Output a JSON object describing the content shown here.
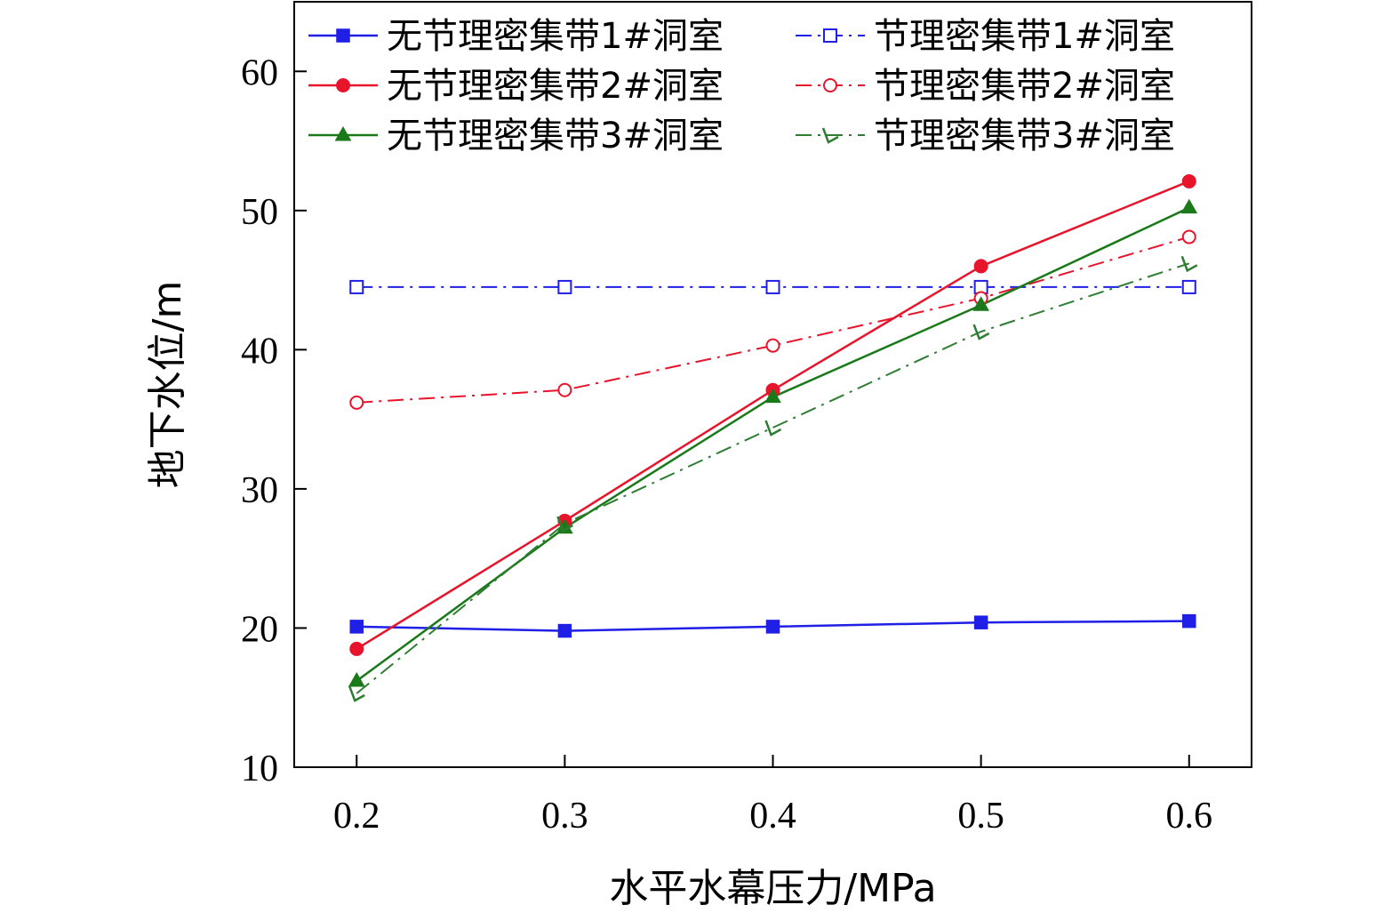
{
  "chart_data": {
    "type": "line",
    "xlabel": "水平水幕压力/MPa",
    "ylabel": "地下水位/m",
    "x": [
      0.2,
      0.3,
      0.4,
      0.5,
      0.6
    ],
    "x_tick_labels": [
      "0.2",
      "0.3",
      "0.4",
      "0.5",
      "0.6"
    ],
    "xlim": [
      0.17,
      0.63
    ],
    "ylim": [
      10,
      65
    ],
    "y_ticks": [
      10,
      20,
      30,
      40,
      50,
      60
    ],
    "y_tick_labels": [
      "10",
      "20",
      "30",
      "40",
      "50",
      "60"
    ],
    "grid": false,
    "legend_position": "top",
    "series": [
      {
        "name": "无节理密集带1#洞室",
        "values": [
          20.1,
          19.8,
          20.1,
          20.4,
          20.5
        ],
        "color": "#1f1fe6",
        "marker": "square-filled",
        "line": "solid"
      },
      {
        "name": "节理密集带1#洞室",
        "values": [
          44.5,
          44.5,
          44.5,
          44.5,
          44.5
        ],
        "color": "#1f1fe6",
        "marker": "square-open",
        "line": "dashdot"
      },
      {
        "name": "无节理密集带2#洞室",
        "values": [
          18.5,
          27.7,
          37.1,
          46.0,
          52.1
        ],
        "color": "#e8142c",
        "marker": "circle-filled",
        "line": "solid"
      },
      {
        "name": "节理密集带2#洞室",
        "values": [
          36.2,
          37.1,
          40.3,
          43.7,
          48.1
        ],
        "color": "#e8142c",
        "marker": "circle-open",
        "line": "dashdot"
      },
      {
        "name": "无节理密集带3#洞室",
        "values": [
          16.2,
          27.2,
          36.6,
          43.2,
          50.2
        ],
        "color": "#1a7a1a",
        "marker": "triangle-filled",
        "line": "solid"
      },
      {
        "name": "节理密集带3#洞室",
        "values": [
          15.3,
          27.5,
          34.4,
          41.3,
          46.2
        ],
        "color": "#2e7d32",
        "marker": "check",
        "line": "dashdot"
      }
    ]
  }
}
